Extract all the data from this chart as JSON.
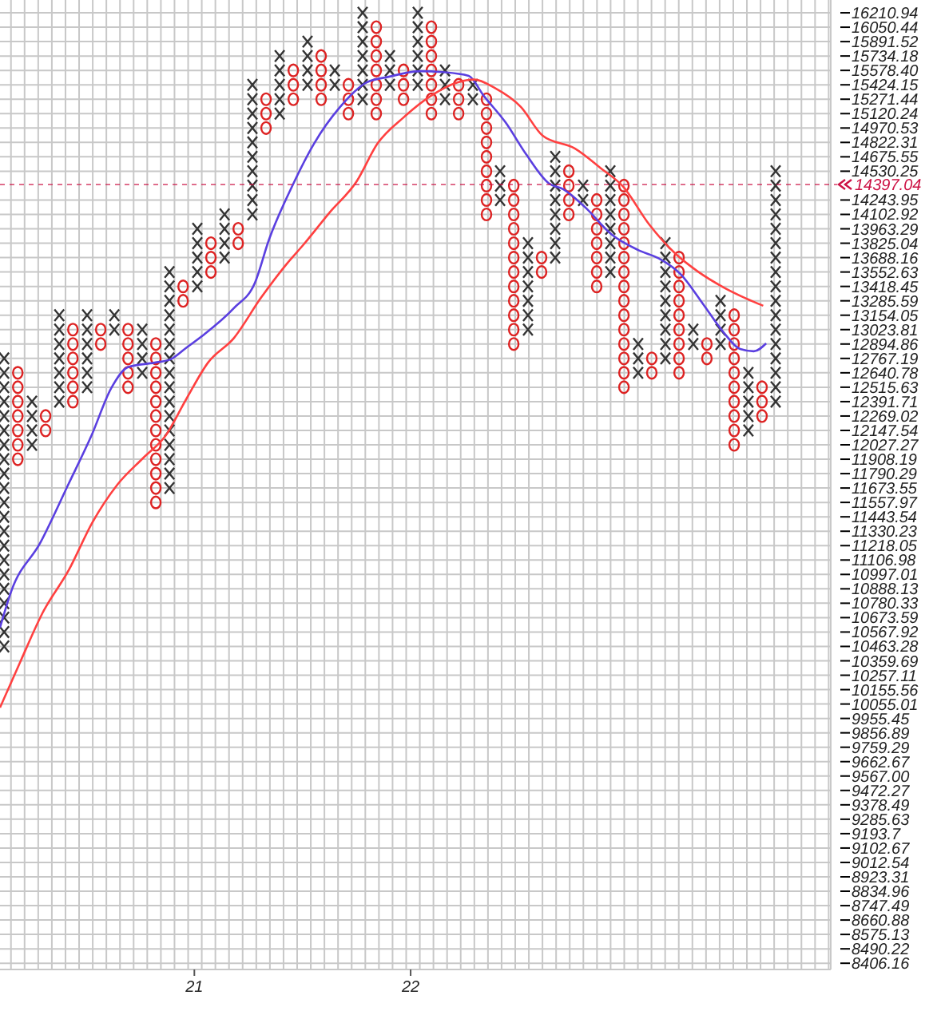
{
  "chart_data": {
    "type": "scatter",
    "log": "y",
    "grid": true,
    "xlim": [
      "2020-02-08",
      "2023-12-11"
    ],
    "ylim": [
      8370,
      16355
    ],
    "xticks": [
      {
        "value": "2021",
        "label": "21"
      },
      {
        "value": "2022",
        "label": "22"
      }
    ],
    "yticks": [
      16210.94,
      16050.44,
      15891.52,
      15734.18,
      {
        "value": 15578.4,
        "label": "15578.40"
      },
      15424.15,
      15271.44,
      15120.24,
      14970.53,
      14822.31,
      14675.55,
      14530.25,
      14243.95,
      14102.92,
      13963.29,
      13825.04,
      13688.16,
      13552.63,
      13418.45,
      13285.59,
      13154.05,
      13023.81,
      12894.86,
      12767.19,
      12640.78,
      12515.63,
      12391.71,
      12269.02,
      12147.54,
      12027.27,
      11908.19,
      11790.29,
      11673.55,
      11557.97,
      11443.54,
      11330.23,
      11218.05,
      11106.98,
      10997.01,
      10888.13,
      10780.33,
      10673.59,
      10567.92,
      10463.28,
      10359.69,
      10257.11,
      10155.56,
      10055.01,
      9955.45,
      9856.89,
      9759.29,
      9662.67,
      {
        "value": 9567,
        "label": "9567.00"
      },
      9472.27,
      9378.49,
      9285.63,
      9193.7,
      9102.67,
      9012.54,
      8923.31,
      8834.96,
      8747.49,
      8660.88,
      8575.13,
      8490.22,
      8406.16
    ],
    "ref_lines": [
      {
        "axis": "y",
        "value": 14397.04,
        "label": "14397.04",
        "color": "#cc1144"
      }
    ],
    "series": [
      {
        "marker": "cross",
        "color": "#333333",
        "x": [
          "2020-02-15",
          "2020-02-15",
          "2020-02-15",
          "2020-02-15",
          "2020-02-15",
          "2020-02-15",
          "2020-02-15",
          "2020-02-15",
          "2020-02-15",
          "2020-02-15",
          "2020-02-15",
          "2020-02-15",
          "2020-02-15",
          "2020-02-15",
          "2020-02-15",
          "2020-02-15",
          "2020-02-15",
          "2020-02-15",
          "2020-02-15",
          "2020-02-15",
          "2020-02-15",
          "2020-04-02",
          "2020-04-02",
          "2020-04-02",
          "2020-04-02",
          "2020-05-18",
          "2020-05-18",
          "2020-05-18",
          "2020-05-18",
          "2020-05-18",
          "2020-05-18",
          "2020-05-18",
          "2020-07-04",
          "2020-07-04",
          "2020-07-04",
          "2020-07-04",
          "2020-07-04",
          "2020-07-04",
          "2020-08-19",
          "2020-08-19",
          "2020-10-05",
          "2020-10-05",
          "2020-10-05",
          "2020-10-05",
          "2020-11-20",
          "2020-11-20",
          "2020-11-20",
          "2020-11-20",
          "2020-11-20",
          "2020-11-20",
          "2020-11-20",
          "2020-11-20",
          "2020-11-20",
          "2020-11-20",
          "2020-11-20",
          "2020-11-20",
          "2020-11-20",
          "2020-11-20",
          "2020-11-20",
          "2020-11-20",
          "2021-01-06",
          "2021-01-06",
          "2021-01-06",
          "2021-01-06",
          "2021-01-06",
          "2021-02-21",
          "2021-02-21",
          "2021-02-21",
          "2021-02-21",
          "2021-04-09",
          "2021-04-09",
          "2021-04-09",
          "2021-04-09",
          "2021-04-09",
          "2021-04-09",
          "2021-04-09",
          "2021-04-09",
          "2021-04-09",
          "2021-04-09",
          "2021-05-25",
          "2021-05-25",
          "2021-05-25",
          "2021-05-25",
          "2021-05-25",
          "2021-07-11",
          "2021-07-11",
          "2021-07-11",
          "2021-07-11",
          "2021-08-26",
          "2021-08-26",
          "2021-10-12",
          "2021-10-12",
          "2021-10-12",
          "2021-10-12",
          "2021-10-12",
          "2021-10-12",
          "2021-10-12",
          "2021-11-27",
          "2021-11-27",
          "2021-11-27",
          "2022-01-13",
          "2022-01-13",
          "2022-01-13",
          "2022-01-13",
          "2022-01-13",
          "2022-01-13",
          "2022-02-28",
          "2022-02-28",
          "2022-02-28",
          "2022-04-16",
          "2022-04-16",
          "2022-06-01",
          "2022-06-01",
          "2022-06-01",
          "2022-07-18",
          "2022-07-18",
          "2022-07-18",
          "2022-07-18",
          "2022-07-18",
          "2022-07-18",
          "2022-07-18",
          "2022-09-02",
          "2022-09-02",
          "2022-09-02",
          "2022-09-02",
          "2022-09-02",
          "2022-09-02",
          "2022-09-02",
          "2022-09-02",
          "2022-10-19",
          "2022-10-19",
          "2022-12-04",
          "2022-12-04",
          "2022-12-04",
          "2022-12-04",
          "2022-12-04",
          "2022-12-04",
          "2022-12-04",
          "2022-12-04",
          "2023-01-20",
          "2023-01-20",
          "2023-01-20",
          "2023-03-07",
          "2023-03-07",
          "2023-03-07",
          "2023-03-07",
          "2023-03-07",
          "2023-03-07",
          "2023-03-07",
          "2023-03-07",
          "2023-03-07",
          "2023-04-23",
          "2023-04-23",
          "2023-06-08",
          "2023-06-08",
          "2023-06-08",
          "2023-06-08",
          "2023-07-25",
          "2023-07-25",
          "2023-07-25",
          "2023-07-25",
          "2023-07-25",
          "2023-09-09",
          "2023-09-09",
          "2023-09-09",
          "2023-09-09",
          "2023-09-09",
          "2023-09-09",
          "2023-09-09",
          "2023-09-09",
          "2023-09-09",
          "2023-09-09",
          "2023-09-09",
          "2023-09-09",
          "2023-09-09",
          "2023-09-09",
          "2023-09-09",
          "2023-09-09",
          "2023-09-09"
        ],
        "values": [
          12767.19,
          12640.78,
          12515.63,
          12391.71,
          12269.02,
          12147.54,
          12027.27,
          11908.19,
          11790.29,
          11673.55,
          11557.97,
          11443.54,
          11330.23,
          11218.05,
          11106.98,
          10997.01,
          10888.13,
          10780.33,
          10673.59,
          10567.92,
          10463.28,
          12391.71,
          12269.02,
          12147.54,
          12027.27,
          13154.05,
          13023.81,
          12894.86,
          12767.19,
          12640.78,
          12515.63,
          12391.71,
          13154.05,
          13023.81,
          12894.86,
          12767.19,
          12640.78,
          12515.63,
          13154.05,
          13023.81,
          13023.81,
          12894.86,
          12767.19,
          12640.78,
          13552.63,
          13418.45,
          13285.59,
          13154.05,
          13023.81,
          12894.86,
          12767.19,
          12640.78,
          12515.63,
          12391.71,
          12269.02,
          12147.54,
          12027.27,
          11908.19,
          11790.29,
          11673.55,
          13963.29,
          13825.04,
          13688.16,
          13552.63,
          13418.45,
          14102.92,
          13963.29,
          13825.04,
          13688.16,
          15424.15,
          15271.44,
          15120.24,
          14970.53,
          14822.31,
          14675.55,
          14530.25,
          14386.39,
          14243.95,
          14102.92,
          15734.18,
          15578.4,
          15424.15,
          15271.44,
          15120.24,
          15891.52,
          15734.18,
          15578.4,
          15424.15,
          15578.4,
          15424.15,
          16210.94,
          16050.44,
          15891.52,
          15734.18,
          15578.4,
          15424.15,
          15271.44,
          15734.18,
          15578.4,
          15424.15,
          16210.94,
          16050.44,
          15891.52,
          15734.18,
          15578.4,
          15424.15,
          15578.4,
          15424.15,
          15271.44,
          15424.15,
          15271.44,
          14530.25,
          14386.39,
          14243.95,
          13825.04,
          13688.16,
          13552.63,
          13418.45,
          13285.59,
          13154.05,
          13023.81,
          14675.55,
          14530.25,
          14386.39,
          14243.95,
          14102.92,
          13963.29,
          13825.04,
          13688.16,
          14386.39,
          14243.95,
          14530.25,
          14386.39,
          14243.95,
          14102.92,
          13963.29,
          13825.04,
          13688.16,
          13552.63,
          12894.86,
          12767.19,
          12640.78,
          13825.04,
          13688.16,
          13552.63,
          13418.45,
          13285.59,
          13154.05,
          13023.81,
          12894.86,
          12767.19,
          13023.81,
          12894.86,
          13285.59,
          13154.05,
          13023.81,
          12894.86,
          12640.78,
          12515.63,
          12391.71,
          12269.02,
          12147.54,
          14530.25,
          14386.39,
          14243.95,
          14102.92,
          13963.29,
          13825.04,
          13688.16,
          13552.63,
          13418.45,
          13285.59,
          13154.05,
          13023.81,
          12894.86,
          12767.19,
          12640.78,
          12515.63,
          12391.71
        ]
      },
      {
        "marker": "circle",
        "color": "#dd2222",
        "x": [
          "2020-03-09",
          "2020-03-09",
          "2020-03-09",
          "2020-03-09",
          "2020-03-09",
          "2020-03-09",
          "2020-03-09",
          "2020-04-25",
          "2020-04-25",
          "2020-06-10",
          "2020-06-10",
          "2020-06-10",
          "2020-06-10",
          "2020-06-10",
          "2020-06-10",
          "2020-07-27",
          "2020-07-27",
          "2020-09-11",
          "2020-09-11",
          "2020-09-11",
          "2020-09-11",
          "2020-09-11",
          "2020-10-28",
          "2020-10-28",
          "2020-10-28",
          "2020-10-28",
          "2020-10-28",
          "2020-10-28",
          "2020-10-28",
          "2020-10-28",
          "2020-10-28",
          "2020-10-28",
          "2020-10-28",
          "2020-10-28",
          "2020-12-13",
          "2020-12-13",
          "2021-01-29",
          "2021-01-29",
          "2021-01-29",
          "2021-03-16",
          "2021-03-16",
          "2021-05-02",
          "2021-05-02",
          "2021-05-02",
          "2021-06-17",
          "2021-06-17",
          "2021-06-17",
          "2021-08-03",
          "2021-08-03",
          "2021-08-03",
          "2021-08-03",
          "2021-09-18",
          "2021-09-18",
          "2021-09-18",
          "2021-11-04",
          "2021-11-04",
          "2021-11-04",
          "2021-11-04",
          "2021-11-04",
          "2021-11-04",
          "2021-11-04",
          "2021-12-20",
          "2021-12-20",
          "2021-12-20",
          "2022-02-05",
          "2022-02-05",
          "2022-02-05",
          "2022-02-05",
          "2022-02-05",
          "2022-02-05",
          "2022-02-05",
          "2022-03-23",
          "2022-03-23",
          "2022-03-23",
          "2022-05-09",
          "2022-05-09",
          "2022-05-09",
          "2022-05-09",
          "2022-05-09",
          "2022-05-09",
          "2022-05-09",
          "2022-05-09",
          "2022-05-09",
          "2022-06-24",
          "2022-06-24",
          "2022-06-24",
          "2022-06-24",
          "2022-06-24",
          "2022-06-24",
          "2022-06-24",
          "2022-06-24",
          "2022-06-24",
          "2022-06-24",
          "2022-06-24",
          "2022-06-24",
          "2022-08-10",
          "2022-08-10",
          "2022-09-25",
          "2022-09-25",
          "2022-09-25",
          "2022-09-25",
          "2022-11-11",
          "2022-11-11",
          "2022-11-11",
          "2022-11-11",
          "2022-11-11",
          "2022-11-11",
          "2022-11-11",
          "2022-12-27",
          "2022-12-27",
          "2022-12-27",
          "2022-12-27",
          "2022-12-27",
          "2022-12-27",
          "2022-12-27",
          "2022-12-27",
          "2022-12-27",
          "2022-12-27",
          "2022-12-27",
          "2022-12-27",
          "2022-12-27",
          "2022-12-27",
          "2022-12-27",
          "2023-02-12",
          "2023-02-12",
          "2023-03-30",
          "2023-03-30",
          "2023-03-30",
          "2023-03-30",
          "2023-03-30",
          "2023-03-30",
          "2023-03-30",
          "2023-03-30",
          "2023-03-30",
          "2023-05-16",
          "2023-05-16",
          "2023-07-01",
          "2023-07-01",
          "2023-07-01",
          "2023-07-01",
          "2023-07-01",
          "2023-07-01",
          "2023-07-01",
          "2023-07-01",
          "2023-07-01",
          "2023-07-01",
          "2023-08-17",
          "2023-08-17",
          "2023-08-17"
        ],
        "values": [
          12640.78,
          12515.63,
          12391.71,
          12269.02,
          12147.54,
          12027.27,
          11908.19,
          12269.02,
          12147.54,
          13023.81,
          12894.86,
          12767.19,
          12640.78,
          12515.63,
          12391.71,
          13023.81,
          12894.86,
          13023.81,
          12894.86,
          12767.19,
          12640.78,
          12515.63,
          12894.86,
          12767.19,
          12640.78,
          12515.63,
          12391.71,
          12269.02,
          12147.54,
          12027.27,
          11908.19,
          11790.29,
          11673.55,
          11557.97,
          13418.45,
          13285.59,
          13825.04,
          13688.16,
          13552.63,
          13963.29,
          13825.04,
          15271.44,
          15120.24,
          14970.53,
          15578.4,
          15424.15,
          15271.44,
          15734.18,
          15578.4,
          15424.15,
          15271.44,
          15424.15,
          15271.44,
          15120.24,
          16050.44,
          15891.52,
          15734.18,
          15578.4,
          15424.15,
          15271.44,
          15120.24,
          15578.4,
          15424.15,
          15271.44,
          16050.44,
          15891.52,
          15734.18,
          15578.4,
          15424.15,
          15271.44,
          15120.24,
          15424.15,
          15271.44,
          15120.24,
          15271.44,
          15120.24,
          14970.53,
          14822.31,
          14675.55,
          14530.25,
          14386.39,
          14243.95,
          14102.92,
          14386.39,
          14243.95,
          14102.92,
          13963.29,
          13825.04,
          13688.16,
          13552.63,
          13418.45,
          13285.59,
          13154.05,
          13023.81,
          12894.86,
          13688.16,
          13552.63,
          14530.25,
          14386.39,
          14243.95,
          14102.92,
          14243.95,
          14102.92,
          13963.29,
          13825.04,
          13688.16,
          13552.63,
          13418.45,
          14386.39,
          14243.95,
          14102.92,
          13963.29,
          13825.04,
          13688.16,
          13552.63,
          13418.45,
          13285.59,
          13154.05,
          13023.81,
          12894.86,
          12767.19,
          12640.78,
          12515.63,
          12767.19,
          12640.78,
          13688.16,
          13552.63,
          13418.45,
          13285.59,
          13154.05,
          13023.81,
          12894.86,
          12767.19,
          12640.78,
          12894.86,
          12767.19,
          13154.05,
          13023.81,
          12894.86,
          12767.19,
          12640.78,
          12515.63,
          12391.71,
          12269.02,
          12147.54,
          12027.27,
          12515.63,
          12391.71,
          12269.02
        ]
      },
      {
        "type": "line",
        "marker": "none",
        "color": "#5a3fe0",
        "x": [
          "2020-02-08",
          "2020-02-27",
          "2020-04-16",
          "2020-06-03",
          "2020-07-11",
          "2020-08-14",
          "2020-09-11",
          "2020-10-26",
          "2020-11-22",
          "2020-12-18",
          "2021-01-15",
          "2021-03-09",
          "2021-04-13",
          "2021-05-07",
          "2021-06-15",
          "2021-07-22",
          "2021-09-04",
          "2021-10-19",
          "2021-11-25",
          "2022-01-17",
          "2022-02-24",
          "2022-04-09",
          "2022-05-04",
          "2022-06-10",
          "2022-07-15",
          "2022-08-22",
          "2022-09-16",
          "2022-10-23",
          "2022-12-06",
          "2023-01-20",
          "2023-02-24",
          "2023-04-02",
          "2023-05-09",
          "2023-06-13",
          "2023-07-11",
          "2023-08-03",
          "2023-08-24"
        ],
        "values": [
          10600,
          10870,
          11240,
          11710,
          12100,
          12510,
          12690,
          12730,
          12760,
          12860,
          12970,
          13220,
          13450,
          13860,
          14380,
          14810,
          15190,
          15450,
          15510,
          15570,
          15560,
          15520,
          15310,
          15030,
          14700,
          14410,
          14350,
          14170,
          13910,
          13760,
          13680,
          13530,
          13260,
          13000,
          12850,
          12830,
          12900
        ]
      },
      {
        "type": "line",
        "marker": "none",
        "color": "#ff4040",
        "x": [
          "2020-02-08",
          "2020-03-14",
          "2020-04-20",
          "2020-06-03",
          "2020-07-13",
          "2020-08-24",
          "2020-10-07",
          "2020-11-13",
          "2020-12-18",
          "2021-01-24",
          "2021-03-09",
          "2021-04-23",
          "2021-06-06",
          "2021-07-04",
          "2021-08-17",
          "2021-10-02",
          "2021-11-06",
          "2021-12-20",
          "2022-02-05",
          "2022-03-21",
          "2022-04-18",
          "2022-05-23",
          "2022-07-06",
          "2022-08-12",
          "2022-10-05",
          "2022-11-18",
          "2022-12-25",
          "2023-02-07",
          "2023-03-23",
          "2023-04-30",
          "2023-06-13",
          "2023-07-20",
          "2023-08-19"
        ],
        "values": [
          10030,
          10360,
          10710,
          11030,
          11400,
          11700,
          11920,
          12100,
          12410,
          12730,
          12950,
          13310,
          13630,
          13810,
          14120,
          14430,
          14810,
          15080,
          15310,
          15450,
          15480,
          15390,
          15190,
          14890,
          14760,
          14560,
          14380,
          14010,
          13730,
          13560,
          13410,
          13310,
          13240
        ]
      }
    ]
  }
}
